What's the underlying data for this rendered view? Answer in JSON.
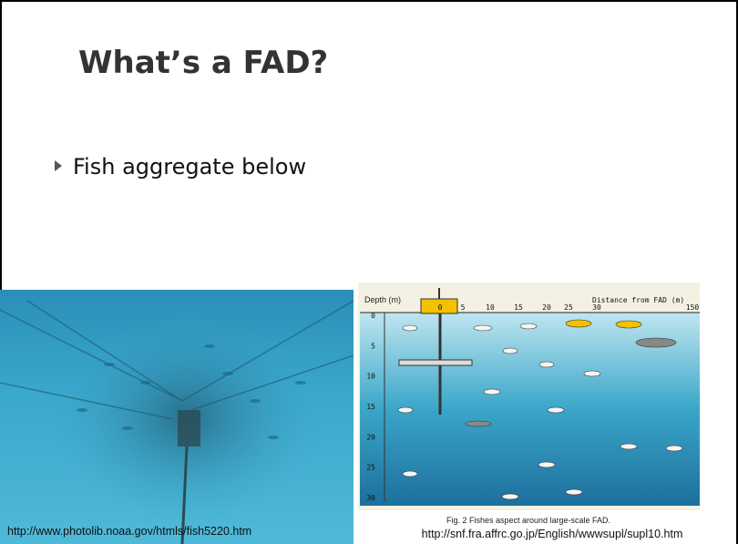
{
  "header": {
    "title": "What’s a FAD?"
  },
  "bullets": [
    "Fish aggregate below"
  ],
  "left_image": {
    "caption": "http://www.photolib.noaa.gov/htmls/fish5220.htm"
  },
  "right_figure": {
    "depth_label": "Depth (m)",
    "distance_label": "Distance from FAD (m)",
    "depth_ticks": [
      "0",
      "5",
      "10",
      "15",
      "20",
      "25",
      "30"
    ],
    "distance_ticks": [
      "0",
      "5",
      "10",
      "15",
      "20",
      "25",
      "30",
      "150"
    ],
    "figure_caption": "Fig. 2   Fishes aspect around large-scale FAD.",
    "source": "http://snf.fra.affrc.go.jp/English/wwwsupl/supl10.htm"
  }
}
